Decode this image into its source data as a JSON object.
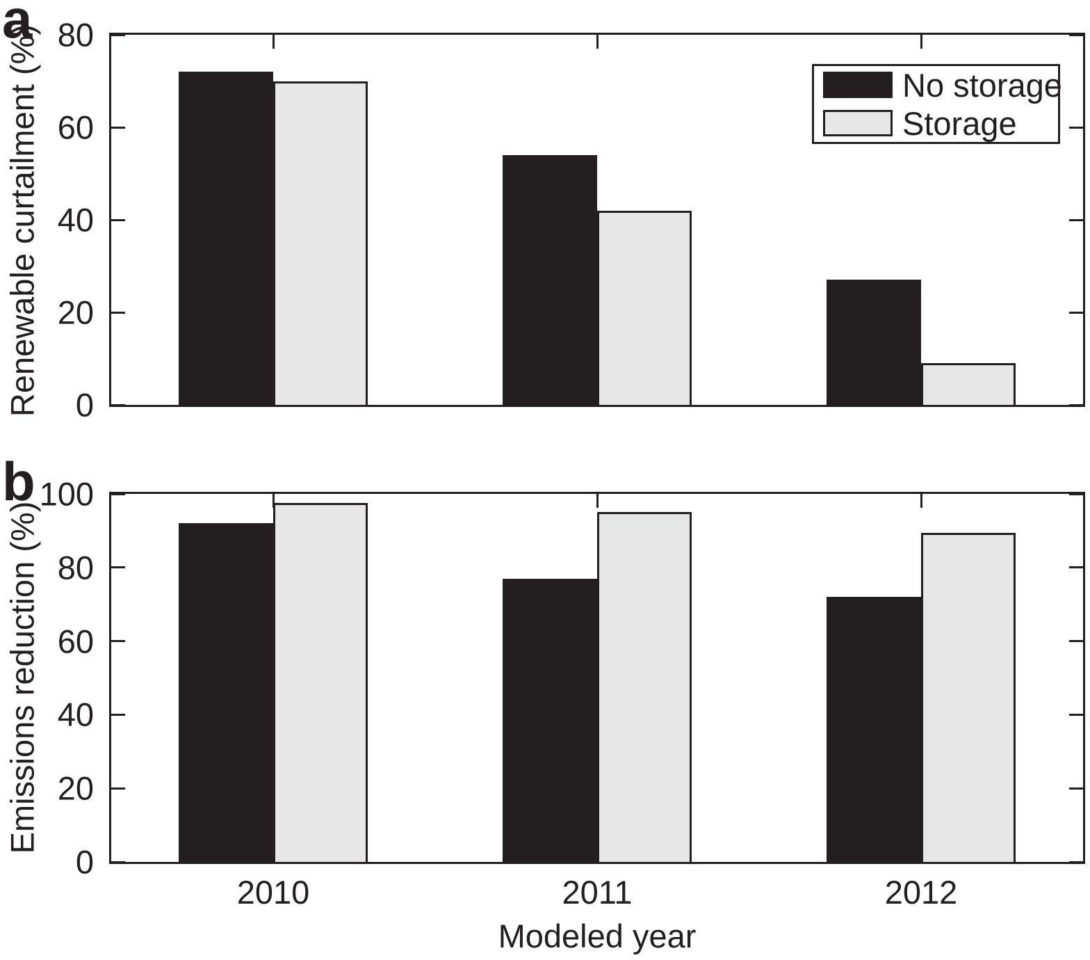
{
  "figure": {
    "panels": [
      {
        "letter": "a",
        "ylabel": "Renewable curtailment (%)"
      },
      {
        "letter": "b",
        "ylabel": "Emissions reduction (%)"
      }
    ],
    "xlabel": "Modeled year"
  },
  "legend": {
    "position": "top-right",
    "items": [
      {
        "label": "No storage",
        "color": "#231f20"
      },
      {
        "label": "Storage",
        "color": "#e7e7e7"
      }
    ]
  },
  "colors": {
    "ink": "#231f20",
    "gray_fill": "#e7e7e7",
    "background": "#ffffff"
  },
  "chart_data": [
    {
      "type": "bar",
      "panel": "a",
      "title": "",
      "ylabel": "Renewable curtailment (%)",
      "xlabel": "",
      "categories": [
        "2010",
        "2011",
        "2012"
      ],
      "series": [
        {
          "name": "No storage",
          "fill": "#231f20",
          "values": [
            72,
            54,
            27
          ]
        },
        {
          "name": "Storage",
          "fill": "#e7e7e7",
          "values": [
            70,
            42,
            9
          ]
        }
      ],
      "ylim": [
        0,
        80
      ],
      "yticks": [
        0,
        20,
        40,
        60,
        80
      ],
      "grid": false,
      "legend_position": "top-right"
    },
    {
      "type": "bar",
      "panel": "b",
      "title": "",
      "ylabel": "Emissions reduction (%)",
      "xlabel": "Modeled year",
      "categories": [
        "2010",
        "2011",
        "2012"
      ],
      "series": [
        {
          "name": "No storage",
          "fill": "#231f20",
          "values": [
            92,
            77,
            72
          ]
        },
        {
          "name": "Storage",
          "fill": "#e7e7e7",
          "values": [
            97.5,
            95,
            89.5
          ]
        }
      ],
      "ylim": [
        0,
        100
      ],
      "yticks": [
        0,
        20,
        40,
        60,
        80,
        100
      ],
      "grid": false,
      "legend_position": "none"
    }
  ]
}
